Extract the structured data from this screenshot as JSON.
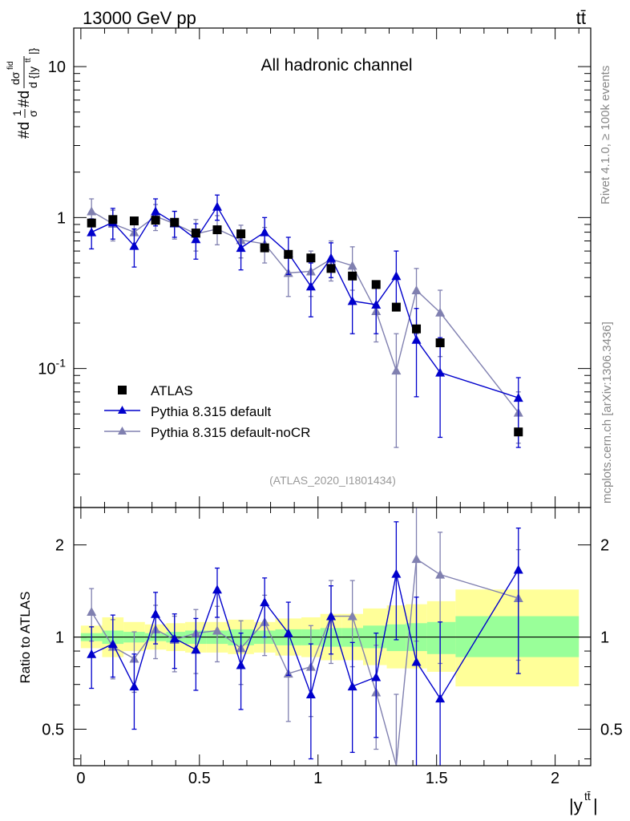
{
  "header": {
    "energy_label": "13000 GeV pp",
    "process_label": "tt̄"
  },
  "sidebar": {
    "rivet_label": "Rivet 4.1.0, ≥ 100k events",
    "mcplots_label": "mcplots.cern.ch [arXiv:1306.3436]"
  },
  "chart_data": [
    {
      "type": "scatter",
      "panel": "main",
      "title": "All hadronic channel",
      "analysis_label": "(ATLAS_2020_I1801434)",
      "ylabel": "#d\\frac{1}{σ}#d\\frac{dσ^{fid}}{d {|y^{tt̄}|}}",
      "yscale": "log",
      "xlim": [
        -0.03,
        2.15
      ],
      "ylim": [
        0.012,
        18
      ],
      "y_tick_labels": [
        "10^{-1}",
        "1",
        "10"
      ],
      "x": [
        0.045,
        0.135,
        0.225,
        0.315,
        0.395,
        0.485,
        0.575,
        0.675,
        0.775,
        0.875,
        0.97,
        1.055,
        1.145,
        1.245,
        1.33,
        1.415,
        1.515,
        1.845
      ],
      "series": [
        {
          "name": "ATLAS",
          "color": "#000000",
          "marker": "square",
          "values": [
            0.92,
            0.97,
            0.95,
            0.96,
            0.93,
            0.79,
            0.83,
            0.78,
            0.63,
            0.57,
            0.54,
            0.46,
            0.41,
            0.36,
            0.255,
            0.183,
            0.148,
            0.038
          ]
        },
        {
          "name": "Pythia 8.315 default",
          "color": "#0000cc",
          "marker": "triangle",
          "values": [
            0.8,
            0.93,
            0.65,
            1.1,
            0.92,
            0.72,
            1.18,
            0.63,
            0.8,
            0.58,
            0.35,
            0.54,
            0.28,
            0.265,
            0.41,
            0.155,
            0.094,
            0.064
          ],
          "err_lo": [
            0.62,
            0.72,
            0.47,
            0.88,
            0.74,
            0.53,
            0.96,
            0.45,
            0.62,
            0.42,
            0.22,
            0.4,
            0.17,
            0.17,
            0.25,
            0.065,
            0.035,
            0.03
          ],
          "err_hi": [
            0.98,
            1.15,
            0.84,
            1.33,
            1.1,
            0.91,
            1.41,
            0.8,
            1.0,
            0.74,
            0.5,
            0.68,
            0.4,
            0.37,
            0.6,
            0.25,
            0.16,
            0.087
          ]
        },
        {
          "name": "Pythia 8.315 default-noCR",
          "color": "#8080b0",
          "marker": "triangle",
          "values": [
            1.1,
            0.91,
            0.8,
            1.02,
            0.91,
            0.78,
            0.84,
            0.71,
            0.67,
            0.43,
            0.44,
            0.53,
            0.48,
            0.24,
            0.097,
            0.33,
            0.235,
            0.051
          ],
          "err_lo": [
            0.9,
            0.7,
            0.62,
            0.82,
            0.72,
            0.6,
            0.66,
            0.54,
            0.5,
            0.3,
            0.3,
            0.38,
            0.33,
            0.15,
            0.03,
            0.17,
            0.12,
            0.032
          ],
          "err_hi": [
            1.33,
            1.12,
            1.0,
            1.22,
            1.1,
            0.97,
            1.03,
            0.89,
            0.86,
            0.58,
            0.6,
            0.7,
            0.64,
            0.35,
            0.17,
            0.46,
            0.33,
            0.07
          ]
        }
      ],
      "legend": "bottom-left"
    },
    {
      "type": "scatter",
      "panel": "ratio",
      "ylabel": "Ratio to ATLAS",
      "yscale": "log",
      "xlim": [
        -0.03,
        2.15
      ],
      "ylim": [
        0.38,
        2.65
      ],
      "y_ticks": [
        0.5,
        1,
        2
      ],
      "y_tick_labels": [
        "0.5",
        "1",
        "2"
      ],
      "x_ticks": [
        0,
        0.5,
        1,
        1.5,
        2
      ],
      "x_tick_labels": [
        "0",
        "0.5",
        "1",
        "1.5",
        "2"
      ],
      "xlabel": "|y^{tt̄}|",
      "reference_line": 1,
      "band_bin_edges": [
        0,
        0.09,
        0.18,
        0.27,
        0.36,
        0.44,
        0.53,
        0.62,
        0.73,
        0.82,
        0.93,
        1.01,
        1.1,
        1.19,
        1.29,
        1.37,
        1.46,
        1.58,
        2.1
      ],
      "band_green_lo": [
        0.97,
        0.95,
        0.96,
        0.97,
        0.96,
        0.95,
        0.95,
        0.94,
        0.95,
        0.94,
        0.94,
        0.93,
        0.93,
        0.92,
        0.9,
        0.9,
        0.88,
        0.86
      ],
      "band_green_hi": [
        1.03,
        1.05,
        1.04,
        1.03,
        1.04,
        1.05,
        1.05,
        1.06,
        1.05,
        1.06,
        1.06,
        1.07,
        1.07,
        1.09,
        1.1,
        1.11,
        1.12,
        1.17
      ],
      "band_yellow_lo": [
        0.92,
        0.86,
        0.9,
        0.91,
        0.9,
        0.89,
        0.89,
        0.88,
        0.89,
        0.87,
        0.86,
        0.84,
        0.84,
        0.81,
        0.79,
        0.79,
        0.77,
        0.69
      ],
      "band_yellow_hi": [
        1.09,
        1.16,
        1.12,
        1.1,
        1.11,
        1.12,
        1.12,
        1.14,
        1.12,
        1.15,
        1.16,
        1.19,
        1.19,
        1.24,
        1.27,
        1.28,
        1.31,
        1.43
      ],
      "series": [
        {
          "name": "Pythia 8.315 default",
          "color": "#0000cc",
          "values": [
            0.88,
            0.95,
            0.69,
            1.19,
            0.99,
            0.91,
            1.43,
            0.81,
            1.3,
            1.03,
            0.65,
            1.17,
            0.69,
            0.74,
            1.61,
            0.83,
            0.63,
            1.66
          ],
          "err_lo": [
            0.68,
            0.74,
            0.5,
            0.95,
            0.79,
            0.67,
            1.16,
            0.58,
            1.0,
            0.75,
            0.4,
            0.88,
            0.42,
            0.47,
            0.98,
            0.35,
            0.24,
            0.76
          ],
          "err_hi": [
            1.08,
            1.18,
            0.88,
            1.4,
            1.19,
            1.15,
            1.68,
            1.03,
            1.56,
            1.3,
            0.95,
            1.47,
            0.96,
            1.03,
            2.38,
            1.35,
            1.12,
            2.27
          ]
        },
        {
          "name": "Pythia 8.315 default-noCR",
          "color": "#8080b0",
          "values": [
            1.21,
            0.93,
            0.85,
            1.06,
            0.98,
            1.03,
            1.05,
            0.92,
            1.12,
            0.76,
            0.8,
            1.17,
            1.17,
            0.66,
            0.37,
            1.8,
            1.6,
            1.34
          ],
          "err_lo": [
            0.97,
            0.73,
            0.66,
            0.85,
            0.77,
            0.76,
            0.83,
            0.7,
            0.87,
            0.53,
            0.55,
            0.82,
            0.8,
            0.43,
            0.12,
            0.97,
            0.82,
            0.84
          ],
          "err_hi": [
            1.44,
            1.14,
            1.04,
            1.27,
            1.17,
            1.23,
            1.26,
            1.13,
            1.37,
            1.01,
            1.09,
            1.53,
            1.53,
            0.94,
            0.65,
            2.7,
            2.2,
            1.93
          ]
        }
      ]
    }
  ]
}
